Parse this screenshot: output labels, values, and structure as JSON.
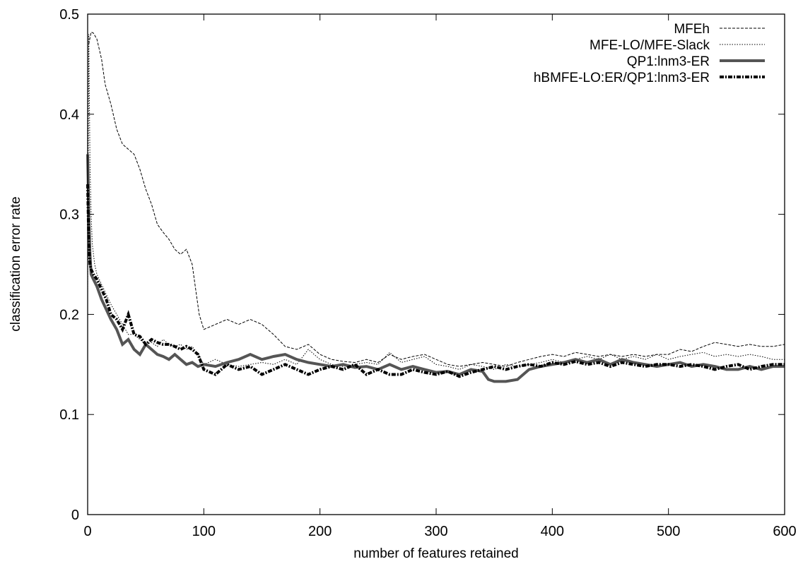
{
  "chart_data": {
    "type": "line",
    "xlabel": "number of features retained",
    "ylabel": "classification error rate",
    "xlim": [
      0,
      600
    ],
    "ylim": [
      0,
      0.5
    ],
    "xticks": [
      0,
      100,
      200,
      300,
      400,
      500,
      600
    ],
    "yticks": [
      0,
      0.1,
      0.2,
      0.3,
      0.4,
      0.5
    ],
    "x_tick_labels": [
      "0",
      "100",
      "200",
      "300",
      "400",
      "500",
      "600"
    ],
    "y_tick_labels": [
      "0",
      "0.1",
      "0.2",
      "0.3",
      "0.4",
      "0.5"
    ],
    "grid": false,
    "legend_position": "top-right",
    "series": [
      {
        "name": "MFEh",
        "style": "dashed",
        "points": [
          [
            1,
            0.47
          ],
          [
            3,
            0.482
          ],
          [
            5,
            0.481
          ],
          [
            8,
            0.475
          ],
          [
            12,
            0.455
          ],
          [
            15,
            0.43
          ],
          [
            20,
            0.41
          ],
          [
            25,
            0.385
          ],
          [
            30,
            0.37
          ],
          [
            35,
            0.365
          ],
          [
            40,
            0.36
          ],
          [
            45,
            0.345
          ],
          [
            50,
            0.325
          ],
          [
            55,
            0.31
          ],
          [
            60,
            0.29
          ],
          [
            65,
            0.282
          ],
          [
            70,
            0.275
          ],
          [
            75,
            0.265
          ],
          [
            80,
            0.26
          ],
          [
            85,
            0.265
          ],
          [
            90,
            0.25
          ],
          [
            93,
            0.225
          ],
          [
            96,
            0.2
          ],
          [
            100,
            0.185
          ],
          [
            110,
            0.19
          ],
          [
            120,
            0.195
          ],
          [
            130,
            0.19
          ],
          [
            140,
            0.195
          ],
          [
            150,
            0.19
          ],
          [
            160,
            0.18
          ],
          [
            170,
            0.168
          ],
          [
            180,
            0.165
          ],
          [
            190,
            0.17
          ],
          [
            200,
            0.16
          ],
          [
            210,
            0.155
          ],
          [
            220,
            0.153
          ],
          [
            230,
            0.152
          ],
          [
            240,
            0.155
          ],
          [
            250,
            0.152
          ],
          [
            260,
            0.16
          ],
          [
            270,
            0.155
          ],
          [
            280,
            0.158
          ],
          [
            290,
            0.16
          ],
          [
            300,
            0.155
          ],
          [
            310,
            0.15
          ],
          [
            320,
            0.148
          ],
          [
            330,
            0.15
          ],
          [
            340,
            0.152
          ],
          [
            350,
            0.15
          ],
          [
            360,
            0.148
          ],
          [
            370,
            0.152
          ],
          [
            380,
            0.155
          ],
          [
            390,
            0.158
          ],
          [
            400,
            0.16
          ],
          [
            410,
            0.158
          ],
          [
            420,
            0.162
          ],
          [
            430,
            0.16
          ],
          [
            440,
            0.158
          ],
          [
            450,
            0.16
          ],
          [
            460,
            0.158
          ],
          [
            470,
            0.16
          ],
          [
            480,
            0.158
          ],
          [
            490,
            0.16
          ],
          [
            500,
            0.16
          ],
          [
            510,
            0.165
          ],
          [
            520,
            0.163
          ],
          [
            530,
            0.168
          ],
          [
            540,
            0.172
          ],
          [
            550,
            0.17
          ],
          [
            560,
            0.168
          ],
          [
            570,
            0.17
          ],
          [
            580,
            0.168
          ],
          [
            590,
            0.168
          ],
          [
            600,
            0.17
          ]
        ]
      },
      {
        "name": "MFE-LO/MFE-Slack",
        "style": "dotted",
        "points": [
          [
            0,
            0.22
          ],
          [
            1,
            0.48
          ],
          [
            2,
            0.35
          ],
          [
            3,
            0.3
          ],
          [
            4,
            0.27
          ],
          [
            6,
            0.25
          ],
          [
            8,
            0.24
          ],
          [
            12,
            0.23
          ],
          [
            16,
            0.22
          ],
          [
            20,
            0.21
          ],
          [
            25,
            0.2
          ],
          [
            30,
            0.19
          ],
          [
            35,
            0.18
          ],
          [
            40,
            0.18
          ],
          [
            45,
            0.175
          ],
          [
            50,
            0.17
          ],
          [
            55,
            0.172
          ],
          [
            60,
            0.168
          ],
          [
            65,
            0.175
          ],
          [
            70,
            0.17
          ],
          [
            75,
            0.168
          ],
          [
            80,
            0.17
          ],
          [
            85,
            0.165
          ],
          [
            90,
            0.168
          ],
          [
            95,
            0.16
          ],
          [
            100,
            0.15
          ],
          [
            110,
            0.155
          ],
          [
            120,
            0.15
          ],
          [
            130,
            0.148
          ],
          [
            140,
            0.15
          ],
          [
            150,
            0.152
          ],
          [
            160,
            0.15
          ],
          [
            170,
            0.155
          ],
          [
            180,
            0.15
          ],
          [
            190,
            0.165
          ],
          [
            200,
            0.155
          ],
          [
            210,
            0.15
          ],
          [
            220,
            0.148
          ],
          [
            230,
            0.15
          ],
          [
            240,
            0.152
          ],
          [
            250,
            0.15
          ],
          [
            260,
            0.162
          ],
          [
            270,
            0.152
          ],
          [
            280,
            0.155
          ],
          [
            290,
            0.158
          ],
          [
            300,
            0.15
          ],
          [
            310,
            0.148
          ],
          [
            320,
            0.145
          ],
          [
            330,
            0.15
          ],
          [
            340,
            0.148
          ],
          [
            350,
            0.145
          ],
          [
            360,
            0.15
          ],
          [
            370,
            0.148
          ],
          [
            380,
            0.15
          ],
          [
            390,
            0.152
          ],
          [
            400,
            0.155
          ],
          [
            410,
            0.152
          ],
          [
            420,
            0.155
          ],
          [
            430,
            0.158
          ],
          [
            440,
            0.155
          ],
          [
            450,
            0.16
          ],
          [
            460,
            0.155
          ],
          [
            470,
            0.158
          ],
          [
            480,
            0.155
          ],
          [
            490,
            0.16
          ],
          [
            500,
            0.155
          ],
          [
            510,
            0.158
          ],
          [
            520,
            0.16
          ],
          [
            530,
            0.162
          ],
          [
            540,
            0.158
          ],
          [
            550,
            0.16
          ],
          [
            560,
            0.158
          ],
          [
            570,
            0.16
          ],
          [
            580,
            0.158
          ],
          [
            590,
            0.155
          ],
          [
            600,
            0.155
          ]
        ]
      },
      {
        "name": "QP1:lnm3-ER",
        "style": "thick-solid",
        "points": [
          [
            0,
            0.36
          ],
          [
            1,
            0.3
          ],
          [
            2,
            0.26
          ],
          [
            3,
            0.24
          ],
          [
            5,
            0.235
          ],
          [
            8,
            0.228
          ],
          [
            12,
            0.215
          ],
          [
            16,
            0.205
          ],
          [
            20,
            0.195
          ],
          [
            25,
            0.185
          ],
          [
            30,
            0.17
          ],
          [
            35,
            0.175
          ],
          [
            40,
            0.165
          ],
          [
            45,
            0.16
          ],
          [
            50,
            0.17
          ],
          [
            55,
            0.165
          ],
          [
            60,
            0.16
          ],
          [
            65,
            0.158
          ],
          [
            70,
            0.155
          ],
          [
            75,
            0.16
          ],
          [
            80,
            0.155
          ],
          [
            85,
            0.15
          ],
          [
            90,
            0.152
          ],
          [
            95,
            0.148
          ],
          [
            100,
            0.15
          ],
          [
            110,
            0.148
          ],
          [
            120,
            0.152
          ],
          [
            130,
            0.155
          ],
          [
            140,
            0.16
          ],
          [
            150,
            0.155
          ],
          [
            160,
            0.158
          ],
          [
            170,
            0.16
          ],
          [
            180,
            0.155
          ],
          [
            190,
            0.152
          ],
          [
            200,
            0.15
          ],
          [
            210,
            0.148
          ],
          [
            220,
            0.15
          ],
          [
            230,
            0.147
          ],
          [
            240,
            0.148
          ],
          [
            250,
            0.145
          ],
          [
            260,
            0.15
          ],
          [
            270,
            0.145
          ],
          [
            280,
            0.148
          ],
          [
            290,
            0.145
          ],
          [
            300,
            0.142
          ],
          [
            310,
            0.143
          ],
          [
            320,
            0.14
          ],
          [
            330,
            0.145
          ],
          [
            340,
            0.143
          ],
          [
            345,
            0.135
          ],
          [
            350,
            0.133
          ],
          [
            360,
            0.133
          ],
          [
            370,
            0.135
          ],
          [
            380,
            0.145
          ],
          [
            390,
            0.148
          ],
          [
            400,
            0.15
          ],
          [
            410,
            0.152
          ],
          [
            420,
            0.155
          ],
          [
            430,
            0.152
          ],
          [
            440,
            0.155
          ],
          [
            450,
            0.15
          ],
          [
            460,
            0.155
          ],
          [
            470,
            0.152
          ],
          [
            480,
            0.15
          ],
          [
            490,
            0.148
          ],
          [
            500,
            0.15
          ],
          [
            510,
            0.152
          ],
          [
            520,
            0.148
          ],
          [
            530,
            0.15
          ],
          [
            540,
            0.148
          ],
          [
            550,
            0.145
          ],
          [
            560,
            0.145
          ],
          [
            570,
            0.148
          ],
          [
            580,
            0.145
          ],
          [
            590,
            0.148
          ],
          [
            600,
            0.148
          ]
        ]
      },
      {
        "name": "hBMFE-LO:ER/QP1:lnm3-ER",
        "style": "thick-dash-dot",
        "points": [
          [
            0,
            0.33
          ],
          [
            1,
            0.27
          ],
          [
            2,
            0.25
          ],
          [
            3,
            0.245
          ],
          [
            5,
            0.24
          ],
          [
            8,
            0.235
          ],
          [
            12,
            0.225
          ],
          [
            16,
            0.215
          ],
          [
            20,
            0.2
          ],
          [
            25,
            0.195
          ],
          [
            30,
            0.185
          ],
          [
            35,
            0.2
          ],
          [
            40,
            0.18
          ],
          [
            45,
            0.178
          ],
          [
            50,
            0.17
          ],
          [
            55,
            0.175
          ],
          [
            60,
            0.172
          ],
          [
            65,
            0.17
          ],
          [
            70,
            0.17
          ],
          [
            75,
            0.168
          ],
          [
            80,
            0.165
          ],
          [
            85,
            0.168
          ],
          [
            90,
            0.165
          ],
          [
            95,
            0.16
          ],
          [
            100,
            0.145
          ],
          [
            110,
            0.14
          ],
          [
            120,
            0.15
          ],
          [
            130,
            0.145
          ],
          [
            140,
            0.148
          ],
          [
            150,
            0.14
          ],
          [
            160,
            0.145
          ],
          [
            170,
            0.15
          ],
          [
            180,
            0.145
          ],
          [
            190,
            0.14
          ],
          [
            200,
            0.145
          ],
          [
            210,
            0.148
          ],
          [
            220,
            0.145
          ],
          [
            230,
            0.15
          ],
          [
            240,
            0.14
          ],
          [
            250,
            0.145
          ],
          [
            260,
            0.14
          ],
          [
            270,
            0.14
          ],
          [
            280,
            0.145
          ],
          [
            290,
            0.142
          ],
          [
            300,
            0.14
          ],
          [
            310,
            0.143
          ],
          [
            320,
            0.138
          ],
          [
            330,
            0.142
          ],
          [
            340,
            0.145
          ],
          [
            350,
            0.148
          ],
          [
            360,
            0.145
          ],
          [
            370,
            0.148
          ],
          [
            380,
            0.15
          ],
          [
            390,
            0.148
          ],
          [
            400,
            0.152
          ],
          [
            410,
            0.15
          ],
          [
            420,
            0.153
          ],
          [
            430,
            0.15
          ],
          [
            440,
            0.152
          ],
          [
            450,
            0.148
          ],
          [
            460,
            0.152
          ],
          [
            470,
            0.15
          ],
          [
            480,
            0.148
          ],
          [
            490,
            0.15
          ],
          [
            500,
            0.15
          ],
          [
            510,
            0.148
          ],
          [
            520,
            0.15
          ],
          [
            530,
            0.148
          ],
          [
            540,
            0.145
          ],
          [
            550,
            0.148
          ],
          [
            560,
            0.15
          ],
          [
            570,
            0.145
          ],
          [
            580,
            0.148
          ],
          [
            590,
            0.15
          ],
          [
            600,
            0.15
          ]
        ]
      }
    ]
  }
}
